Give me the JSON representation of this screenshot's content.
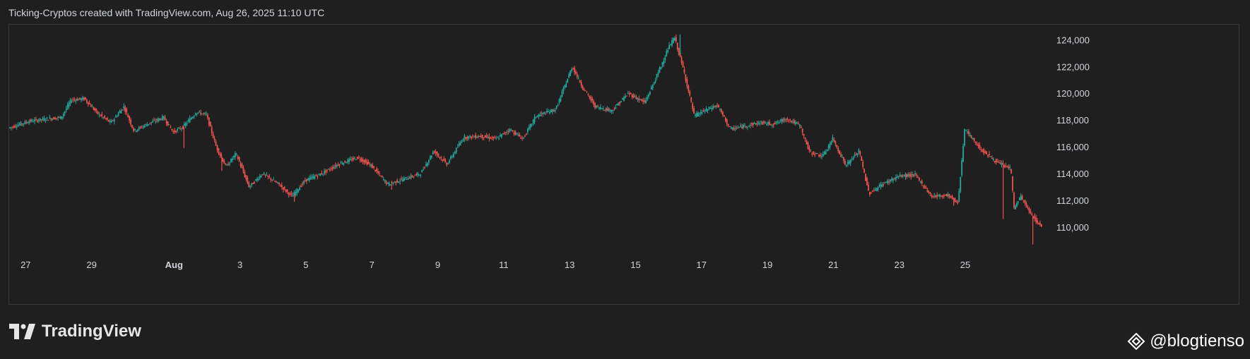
{
  "header": {
    "title": "Ticking-Cryptos created with TradingView.com, Aug 26, 2025 11:10 UTC"
  },
  "branding": {
    "logo_text": "TradingView",
    "watermark_text": "@blogtienso"
  },
  "colors": {
    "background": "#1f1f1f",
    "up": "#26a69a",
    "down": "#ef5350",
    "axis_text": "#d1d4dc",
    "border": "#3a3a3a"
  },
  "chart_data": {
    "type": "candlestick",
    "title": "",
    "ylim": [
      108000,
      124700
    ],
    "yticks": [
      110000,
      112000,
      114000,
      116000,
      118000,
      120000,
      122000,
      124000
    ],
    "ytick_labels": [
      "110,000",
      "112,000",
      "114,000",
      "116,000",
      "118,000",
      "120,000",
      "122,000",
      "124,000"
    ],
    "xlim": [
      0,
      31.25
    ],
    "xticks": [
      0.5,
      2.5,
      5.0,
      7.0,
      9.0,
      11.0,
      13.0,
      15.0,
      17.0,
      19.0,
      21.0,
      23.0,
      25.0,
      27.0,
      29.0,
      31.0
    ],
    "xtick_labels": [
      "27",
      "29",
      "Aug",
      "3",
      "5",
      "7",
      "9",
      "11",
      "13",
      "15",
      "17",
      "19",
      "21",
      "23",
      "25",
      ""
    ],
    "xtick_bold": [
      false,
      false,
      true,
      false,
      false,
      false,
      false,
      false,
      false,
      false,
      false,
      false,
      false,
      false,
      false,
      false
    ],
    "x_unit": "days from Jul 26, 2025 00:00 UTC",
    "price_path": [
      [
        0.0,
        117400
      ],
      [
        0.6,
        117900
      ],
      [
        1.2,
        118100
      ],
      [
        1.6,
        118200
      ],
      [
        1.9,
        119500
      ],
      [
        2.3,
        119600
      ],
      [
        2.7,
        118500
      ],
      [
        3.1,
        117800
      ],
      [
        3.5,
        119000
      ],
      [
        3.8,
        117200
      ],
      [
        4.3,
        117800
      ],
      [
        4.7,
        118200
      ],
      [
        5.0,
        117100
      ],
      [
        5.3,
        117500
      ],
      [
        5.7,
        118600
      ],
      [
        6.0,
        118400
      ],
      [
        6.3,
        116000
      ],
      [
        6.6,
        114500
      ],
      [
        6.9,
        115500
      ],
      [
        7.3,
        113000
      ],
      [
        7.7,
        114000
      ],
      [
        8.2,
        113200
      ],
      [
        8.6,
        112300
      ],
      [
        9.0,
        113500
      ],
      [
        9.5,
        114000
      ],
      [
        10.0,
        114700
      ],
      [
        10.6,
        115200
      ],
      [
        11.0,
        114600
      ],
      [
        11.5,
        113200
      ],
      [
        12.0,
        113600
      ],
      [
        12.5,
        114000
      ],
      [
        12.9,
        115700
      ],
      [
        13.3,
        114700
      ],
      [
        13.8,
        116700
      ],
      [
        14.3,
        116800
      ],
      [
        14.8,
        116600
      ],
      [
        15.2,
        117300
      ],
      [
        15.6,
        116600
      ],
      [
        16.0,
        118300
      ],
      [
        16.6,
        118800
      ],
      [
        17.1,
        122000
      ],
      [
        17.4,
        120500
      ],
      [
        17.8,
        119000
      ],
      [
        18.3,
        118700
      ],
      [
        18.8,
        120000
      ],
      [
        19.3,
        119300
      ],
      [
        19.7,
        121500
      ],
      [
        20.0,
        123300
      ],
      [
        20.2,
        124200
      ],
      [
        20.5,
        121500
      ],
      [
        20.8,
        118300
      ],
      [
        21.2,
        118800
      ],
      [
        21.5,
        119100
      ],
      [
        21.9,
        117300
      ],
      [
        22.4,
        117600
      ],
      [
        22.8,
        117800
      ],
      [
        23.2,
        117700
      ],
      [
        23.6,
        118100
      ],
      [
        24.0,
        117600
      ],
      [
        24.3,
        115600
      ],
      [
        24.7,
        115300
      ],
      [
        25.0,
        116600
      ],
      [
        25.4,
        114600
      ],
      [
        25.8,
        115700
      ],
      [
        26.1,
        112500
      ],
      [
        26.5,
        113200
      ],
      [
        27.0,
        113800
      ],
      [
        27.5,
        113900
      ],
      [
        28.0,
        112300
      ],
      [
        28.5,
        112400
      ],
      [
        28.8,
        111800
      ],
      [
        29.0,
        117300
      ],
      [
        29.5,
        115800
      ],
      [
        30.0,
        114800
      ],
      [
        30.4,
        114400
      ],
      [
        30.5,
        111400
      ],
      [
        30.7,
        112300
      ],
      [
        31.0,
        111000
      ],
      [
        31.1,
        110700
      ],
      [
        31.3,
        110100
      ]
    ],
    "spikes": [
      {
        "x": 5.3,
        "low": 115900
      },
      {
        "x": 6.45,
        "low": 114200
      },
      {
        "x": 8.65,
        "low": 111900
      },
      {
        "x": 11.6,
        "low": 112800
      },
      {
        "x": 20.35,
        "high": 124400
      },
      {
        "x": 28.65,
        "low": 111600
      },
      {
        "x": 30.15,
        "low": 110600
      },
      {
        "x": 31.05,
        "low": 108700
      }
    ]
  }
}
